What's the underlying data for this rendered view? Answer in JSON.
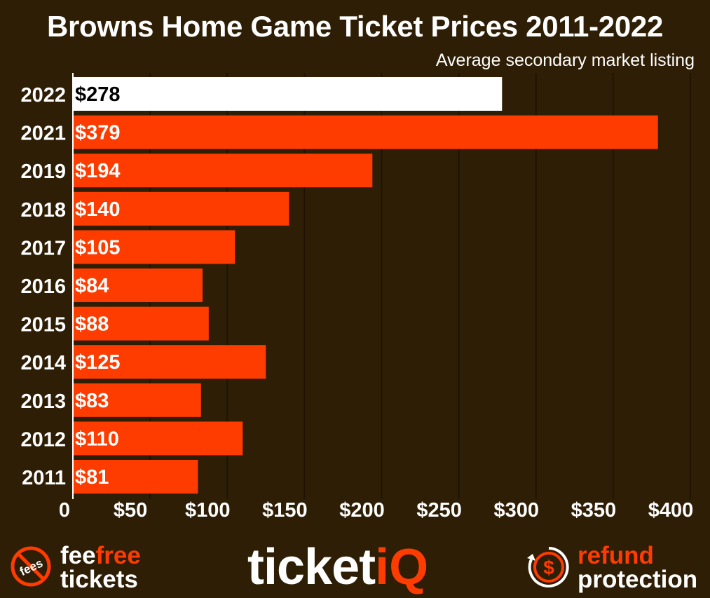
{
  "chart_data": {
    "type": "bar",
    "orientation": "horizontal",
    "title": "Browns Home Game Ticket Prices 2011-2022",
    "subtitle": "Average secondary market listing",
    "categories": [
      "2022",
      "2021",
      "2019",
      "2018",
      "2017",
      "2016",
      "2015",
      "2014",
      "2013",
      "2012",
      "2011"
    ],
    "values": [
      278,
      379,
      194,
      140,
      105,
      84,
      88,
      125,
      83,
      110,
      81
    ],
    "value_labels": [
      "$278",
      "$379",
      "$194",
      "$140",
      "$105",
      "$84",
      "$88",
      "$125",
      "$83",
      "$110",
      "$81"
    ],
    "highlight_index": 0,
    "xlim": [
      0,
      400
    ],
    "xticks": [
      0,
      50,
      100,
      150,
      200,
      250,
      300,
      350,
      400
    ],
    "xtick_labels": [
      "0",
      "$50",
      "$100",
      "$150",
      "$200",
      "$250",
      "$300",
      "$350",
      "$400"
    ],
    "grid": true,
    "colors": {
      "background": "#2e1e05",
      "bar": "#ff3c00",
      "highlight_bar": "#ffffff",
      "text": "#ffffff",
      "highlight_text": "#000000",
      "grid": "#1f1403"
    }
  },
  "footer": {
    "left": {
      "icon": "no-fees-icon",
      "badge_text": "fees",
      "line1_a": "fee",
      "line1_b": "free",
      "line2": "tickets"
    },
    "center": {
      "logo_main": "ticket",
      "logo_accent": "iQ"
    },
    "right": {
      "icon": "refund-dollar-icon",
      "line1": "refund",
      "line2": "protection"
    }
  }
}
